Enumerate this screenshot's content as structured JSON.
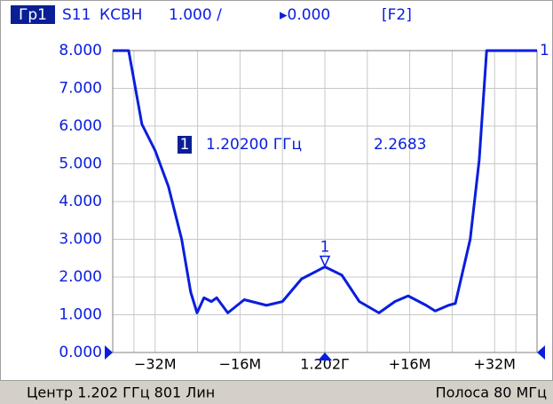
{
  "chart_data": {
    "type": "line",
    "header": {
      "window": "Гр1",
      "trace": "S11",
      "format": "КСВН",
      "scale": "1.000 /",
      "reference": "▸0.000",
      "function": "[F2]"
    },
    "footer": {
      "left": "Центр 1.202 ГГц 801 Лин",
      "right": "Полоса 80 МГц"
    },
    "trace_label": "1",
    "xlim": [
      -40,
      40
    ],
    "xticks": [
      {
        "value": -32,
        "label": "−32M"
      },
      {
        "value": -16,
        "label": "−16M"
      },
      {
        "value": 0,
        "label": "1.202Г"
      },
      {
        "value": 16,
        "label": "+16M"
      },
      {
        "value": 32,
        "label": "+32M"
      }
    ],
    "ylim": [
      0,
      8
    ],
    "yticks": [
      {
        "value": 0,
        "label": "0.000"
      },
      {
        "value": 1,
        "label": "1.000"
      },
      {
        "value": 2,
        "label": "2.000"
      },
      {
        "value": 3,
        "label": "3.000"
      },
      {
        "value": 4,
        "label": "4.000"
      },
      {
        "value": 5,
        "label": "5.000"
      },
      {
        "value": 6,
        "label": "6.000"
      },
      {
        "value": 7,
        "label": "7.000"
      },
      {
        "value": 8,
        "label": "8.000"
      }
    ],
    "grid": true,
    "series": [
      {
        "name": "S11",
        "color": "#0a1edc",
        "x": [
          -40,
          -37,
          -34.5,
          -32,
          -29.5,
          -27,
          -25.3,
          -24.1,
          -22.8,
          -21.4,
          -20.4,
          -18.3,
          -15.2,
          -11,
          -8,
          -4.4,
          0,
          3.2,
          6.5,
          10.2,
          13.2,
          15.7,
          19.1,
          20.8,
          23.3,
          24.6,
          27.4,
          29.1,
          30.5,
          40
        ],
        "values": [
          8,
          8,
          6.05,
          5.35,
          4.4,
          3.0,
          1.6,
          1.05,
          1.45,
          1.35,
          1.45,
          1.05,
          1.4,
          1.25,
          1.35,
          1.95,
          2.27,
          2.05,
          1.35,
          1.05,
          1.35,
          1.5,
          1.25,
          1.1,
          1.25,
          1.3,
          3.0,
          5.1,
          8,
          8
        ]
      }
    ],
    "markers": [
      {
        "label": "1",
        "x": 0,
        "value": 2.2683,
        "readout_freq": "1.20200 ГГц"
      }
    ]
  }
}
